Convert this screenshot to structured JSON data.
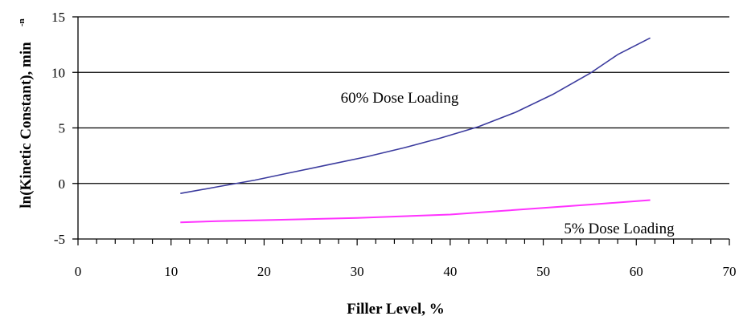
{
  "chart_data": {
    "type": "line",
    "title": "",
    "xlabel": "Filler Level, %",
    "ylabel": "ln(Kinetic Constant), min",
    "ylabel_superscript": "-n",
    "xlim": [
      0,
      70
    ],
    "ylim": [
      -5,
      15
    ],
    "x_ticks": [
      "0",
      "10",
      "20",
      "30",
      "40",
      "50",
      "60",
      "70"
    ],
    "y_ticks": [
      "-5",
      "0",
      "5",
      "10",
      "15"
    ],
    "x_tick_values": [
      0,
      10,
      20,
      30,
      40,
      50,
      60,
      70
    ],
    "y_tick_values": [
      -5,
      0,
      5,
      10,
      15
    ],
    "grid": "horizontal",
    "series": [
      {
        "name": "60% Dose Loading",
        "color": "#3b3b9e",
        "x": [
          11,
          15,
          19,
          23,
          27,
          31,
          35,
          39,
          43,
          47,
          51,
          55,
          58,
          61.5
        ],
        "y": [
          -0.9,
          -0.3,
          0.3,
          1.0,
          1.7,
          2.4,
          3.2,
          4.1,
          5.1,
          6.4,
          8.0,
          9.9,
          11.6,
          13.1
        ]
      },
      {
        "name": "5% Dose Loading",
        "color": "#ff33ff",
        "x": [
          11,
          15,
          20,
          25,
          30,
          35,
          40,
          45,
          50,
          55,
          61.5
        ],
        "y": [
          -3.5,
          -3.4,
          -3.3,
          -3.2,
          -3.1,
          -2.95,
          -2.8,
          -2.5,
          -2.2,
          -1.9,
          -1.5
        ]
      }
    ],
    "annotations": [
      "60% Dose Loading",
      "5% Dose Loading"
    ]
  }
}
